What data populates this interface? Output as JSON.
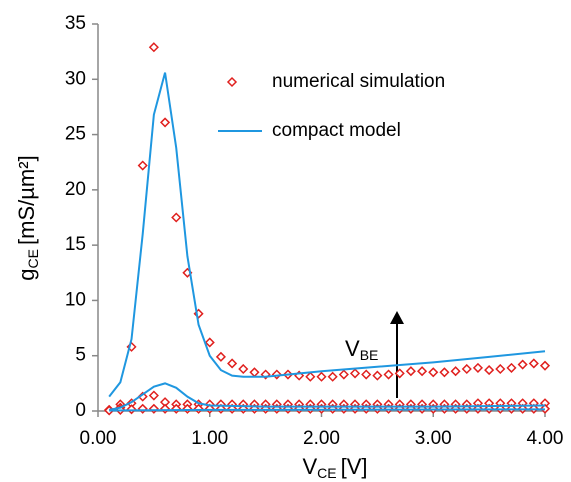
{
  "chart_data": {
    "type": "scatter-line",
    "x_label": {
      "main": "V",
      "sub": "CE",
      "unit": "[V]"
    },
    "y_label": {
      "main": "g",
      "sub": "CE",
      "unit": "[mS/µm²]"
    },
    "annotation": {
      "main": "V",
      "sub": "BE"
    },
    "xlim": [
      0,
      4
    ],
    "ylim": [
      0,
      35
    ],
    "xticks": [
      {
        "value": 0,
        "label": "0.00"
      },
      {
        "value": 1,
        "label": "1.00"
      },
      {
        "value": 2,
        "label": "2.00"
      },
      {
        "value": 3,
        "label": "3.00"
      },
      {
        "value": 4,
        "label": "4.00"
      }
    ],
    "yticks": [
      0,
      5,
      10,
      15,
      20,
      25,
      30,
      35
    ],
    "series": [
      {
        "name": "numerical simulation",
        "color": "#e0201e",
        "marker": "diamond",
        "curves": [
          {
            "x": [
              0.1,
              0.2,
              0.3,
              0.4,
              0.5,
              0.6,
              0.7,
              0.8,
              0.9,
              1.0,
              1.1,
              1.2,
              1.3,
              1.4,
              1.5,
              1.6,
              1.7,
              1.8,
              1.9,
              2.0,
              2.1,
              2.2,
              2.3,
              2.4,
              2.5,
              2.6,
              2.7,
              2.8,
              2.9,
              3.0,
              3.1,
              3.2,
              3.3,
              3.4,
              3.5,
              3.6,
              3.7,
              3.8,
              3.9,
              4.0
            ],
            "values": [
              0.1,
              0.6,
              5.8,
              22.2,
              32.9,
              26.1,
              17.5,
              12.5,
              8.8,
              6.2,
              4.9,
              4.3,
              3.8,
              3.5,
              3.3,
              3.3,
              3.3,
              3.2,
              3.1,
              3.1,
              3.1,
              3.3,
              3.4,
              3.3,
              3.2,
              3.3,
              3.4,
              3.6,
              3.6,
              3.5,
              3.5,
              3.6,
              3.8,
              3.9,
              3.7,
              3.8,
              3.9,
              4.2,
              4.3,
              4.1
            ]
          },
          {
            "x": [
              0.1,
              0.2,
              0.3,
              0.4,
              0.5,
              0.6,
              0.7,
              0.8,
              0.9,
              1.0,
              1.1,
              1.2,
              1.3,
              1.4,
              1.5,
              1.6,
              1.7,
              1.8,
              1.9,
              2.0,
              2.1,
              2.2,
              2.3,
              2.4,
              2.5,
              2.6,
              2.7,
              2.8,
              2.9,
              3.0,
              3.1,
              3.2,
              3.3,
              3.4,
              3.5,
              3.6,
              3.7,
              3.8,
              3.9,
              4.0
            ],
            "values": [
              0.1,
              0.3,
              0.7,
              1.3,
              1.4,
              0.8,
              0.6,
              0.6,
              0.6,
              0.6,
              0.6,
              0.6,
              0.6,
              0.6,
              0.6,
              0.6,
              0.6,
              0.6,
              0.6,
              0.6,
              0.6,
              0.6,
              0.6,
              0.6,
              0.6,
              0.6,
              0.6,
              0.6,
              0.6,
              0.6,
              0.6,
              0.6,
              0.6,
              0.7,
              0.7,
              0.7,
              0.7,
              0.7,
              0.7,
              0.7
            ]
          },
          {
            "x": [
              0.1,
              0.2,
              0.3,
              0.4,
              0.5,
              0.6,
              0.7,
              0.8,
              0.9,
              1.0,
              1.1,
              1.2,
              1.3,
              1.4,
              1.5,
              1.6,
              1.7,
              1.8,
              1.9,
              2.0,
              2.1,
              2.2,
              2.3,
              2.4,
              2.5,
              2.6,
              2.7,
              2.8,
              2.9,
              3.0,
              3.1,
              3.2,
              3.3,
              3.4,
              3.5,
              3.6,
              3.7,
              3.8,
              3.9,
              4.0
            ],
            "values": [
              0.05,
              0.1,
              0.15,
              0.2,
              0.2,
              0.2,
              0.2,
              0.2,
              0.2,
              0.2,
              0.2,
              0.2,
              0.2,
              0.2,
              0.2,
              0.2,
              0.2,
              0.2,
              0.2,
              0.2,
              0.2,
              0.2,
              0.2,
              0.2,
              0.2,
              0.2,
              0.2,
              0.2,
              0.2,
              0.2,
              0.2,
              0.2,
              0.2,
              0.2,
              0.2,
              0.2,
              0.2,
              0.2,
              0.2,
              0.2
            ]
          }
        ]
      },
      {
        "name": "compact model",
        "color": "#1f97e0",
        "marker": "line",
        "curves": [
          {
            "x": [
              0.1,
              0.2,
              0.3,
              0.4,
              0.5,
              0.6,
              0.7,
              0.8,
              0.9,
              1.0,
              1.1,
              1.2,
              1.3,
              1.5,
              2.0,
              2.5,
              3.0,
              3.5,
              4.0
            ],
            "values": [
              1.3,
              2.6,
              6.5,
              16,
              26.8,
              30.6,
              23.8,
              14,
              7.8,
              5.0,
              3.7,
              3.2,
              3.1,
              3.1,
              3.6,
              4.0,
              4.4,
              4.9,
              5.4
            ]
          },
          {
            "x": [
              0.1,
              0.2,
              0.3,
              0.4,
              0.5,
              0.6,
              0.7,
              0.8,
              0.9,
              1.0,
              1.5,
              2.0,
              3.0,
              4.0
            ],
            "values": [
              0.1,
              0.3,
              0.8,
              1.5,
              2.2,
              2.5,
              2.1,
              1.3,
              0.7,
              0.5,
              0.4,
              0.4,
              0.4,
              0.5
            ]
          },
          {
            "x": [
              0.1,
              1.0,
              4.0
            ],
            "values": [
              0.05,
              0.1,
              0.15
            ]
          }
        ]
      }
    ]
  }
}
